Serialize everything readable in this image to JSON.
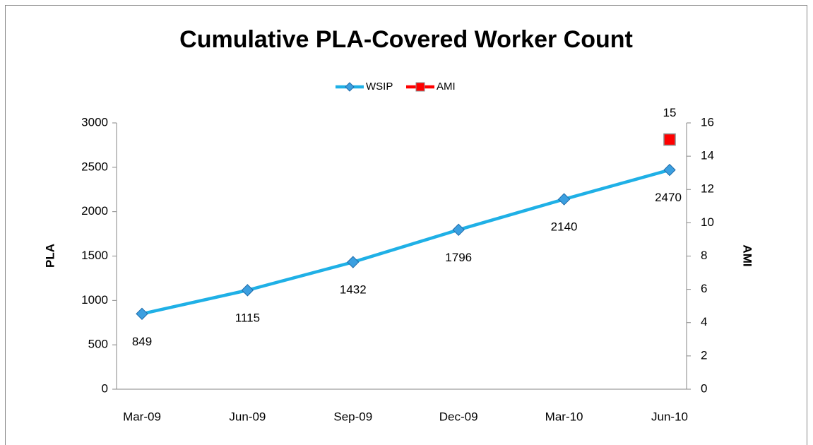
{
  "chart_data": {
    "type": "line",
    "title": "Cumulative PLA-Covered Worker Count",
    "categories": [
      "Mar-09",
      "Jun-09",
      "Sep-09",
      "Dec-09",
      "Mar-10",
      "Jun-10"
    ],
    "series": [
      {
        "name": "WSIP",
        "color": "#1fb0e6",
        "values": [
          849,
          1115,
          1432,
          1796,
          2140,
          2470
        ]
      },
      {
        "name": "AMI",
        "color": "#ff0000",
        "axis": "y2",
        "values": [
          null,
          null,
          null,
          null,
          null,
          15
        ]
      }
    ],
    "ylabel": "PLA",
    "y2label": "AMI",
    "ylim": [
      0,
      3000
    ],
    "yticks": [
      0,
      500,
      1000,
      1500,
      2000,
      2500,
      3000
    ],
    "y2lim": [
      0,
      16
    ],
    "y2ticks": [
      0,
      2,
      4,
      6,
      8,
      10,
      12,
      14,
      16
    ],
    "legend": "top",
    "grid": false
  }
}
